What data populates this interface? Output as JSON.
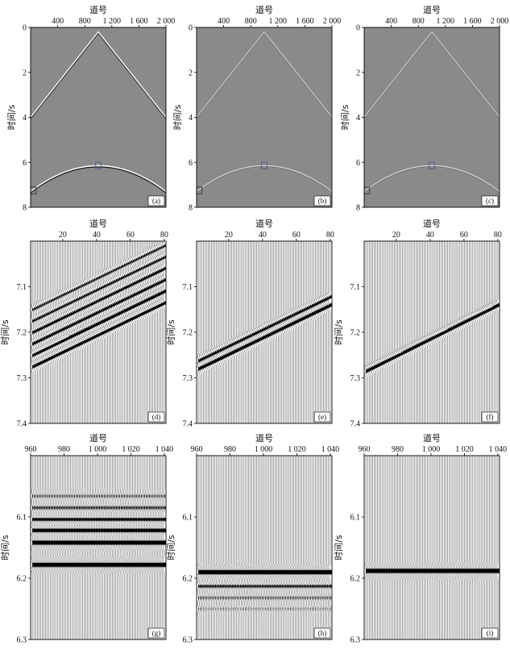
{
  "figure": {
    "xlabel": "道号",
    "ylabel": "时间/s"
  },
  "chart_data": [
    {
      "id": "a",
      "panel_label": "(a)",
      "type": "image",
      "style": "bright",
      "background": "#8a8a8a",
      "xlabel": "道号",
      "ylabel": "时间/s",
      "xlim": [
        0,
        2000
      ],
      "ylim": [
        0,
        8
      ],
      "xticks": [
        400,
        800,
        1200,
        1600,
        2000
      ],
      "xtick_labels": [
        "400",
        "800",
        "1 200",
        "1 600",
        "2 000"
      ],
      "yticks": [
        0,
        2,
        4,
        6,
        8
      ],
      "ytick_labels": [
        "0",
        "2",
        "4",
        "6",
        "8"
      ],
      "events": [
        {
          "kind": "linear",
          "apex_x": 1000,
          "apex_t": 0.2,
          "x": [
            0,
            1000,
            2000
          ],
          "t": [
            4.0,
            0.2,
            4.0
          ]
        },
        {
          "kind": "hyperbolic",
          "apex_x": 1000,
          "apex_t": 6.15,
          "x": [
            0,
            500,
            1000,
            1500,
            2000
          ],
          "t": [
            7.3,
            6.45,
            6.15,
            6.45,
            7.3
          ]
        }
      ],
      "boxes": [
        {
          "color": "#333333",
          "x": [
            0,
            80
          ],
          "t": [
            7.1,
            7.4
          ]
        },
        {
          "color": "#4a5a8a",
          "x": [
            960,
            1040
          ],
          "t": [
            6.0,
            6.3
          ]
        }
      ]
    },
    {
      "id": "b",
      "panel_label": "(b)",
      "type": "image",
      "style": "faint",
      "background": "#8a8a8a",
      "xlabel": "道号",
      "ylabel": "时间/s",
      "xlim": [
        0,
        2000
      ],
      "ylim": [
        0,
        8
      ],
      "xticks": [
        400,
        800,
        1200,
        1600,
        2000
      ],
      "xtick_labels": [
        "400",
        "800",
        "1 200",
        "1 600",
        "2 000"
      ],
      "yticks": [
        0,
        2,
        4,
        6,
        8
      ],
      "ytick_labels": [
        "0",
        "2",
        "4",
        "6",
        "8"
      ],
      "events": [
        {
          "kind": "linear",
          "apex_x": 1000,
          "apex_t": 0.2,
          "x": [
            0,
            1000,
            2000
          ],
          "t": [
            4.0,
            0.2,
            4.0
          ]
        },
        {
          "kind": "hyperbolic",
          "apex_x": 1000,
          "apex_t": 6.15,
          "x": [
            0,
            500,
            1000,
            1500,
            2000
          ],
          "t": [
            7.3,
            6.45,
            6.15,
            6.45,
            7.3
          ]
        }
      ],
      "boxes": [
        {
          "color": "#333333",
          "x": [
            0,
            80
          ],
          "t": [
            7.1,
            7.4
          ]
        },
        {
          "color": "#4a5a8a",
          "x": [
            960,
            1040
          ],
          "t": [
            6.0,
            6.3
          ]
        }
      ]
    },
    {
      "id": "c",
      "panel_label": "(c)",
      "type": "image",
      "style": "faint",
      "background": "#8a8a8a",
      "xlabel": "道号",
      "ylabel": "时间/s",
      "xlim": [
        0,
        2000
      ],
      "ylim": [
        0,
        8
      ],
      "xticks": [
        400,
        800,
        1200,
        1600,
        2000
      ],
      "xtick_labels": [
        "400",
        "800",
        "1 200",
        "1 600",
        "2 000"
      ],
      "yticks": [
        0,
        2,
        4,
        6,
        8
      ],
      "ytick_labels": [
        "0",
        "2",
        "4",
        "6",
        "8"
      ],
      "events": [
        {
          "kind": "linear",
          "apex_x": 1000,
          "apex_t": 0.2,
          "x": [
            0,
            1000,
            2000
          ],
          "t": [
            4.0,
            0.2,
            4.0
          ]
        },
        {
          "kind": "hyperbolic",
          "apex_x": 1000,
          "apex_t": 6.15,
          "x": [
            0,
            500,
            1000,
            1500,
            2000
          ],
          "t": [
            7.3,
            6.45,
            6.15,
            6.45,
            7.3
          ]
        }
      ],
      "boxes": [
        {
          "color": "#333333",
          "x": [
            0,
            80
          ],
          "t": [
            7.1,
            7.4
          ]
        },
        {
          "color": "#4a5a8a",
          "x": [
            960,
            1040
          ],
          "t": [
            6.0,
            6.3
          ]
        }
      ]
    },
    {
      "id": "d",
      "panel_label": "(d)",
      "type": "wiggle",
      "xlabel": "道号",
      "ylabel": "时间/s",
      "xlim": [
        1,
        81
      ],
      "ylim": [
        7.0,
        7.4
      ],
      "xticks": [
        20,
        40,
        60,
        80
      ],
      "xtick_labels": [
        "20",
        "40",
        "60",
        "80"
      ],
      "yticks": [
        7.1,
        7.2,
        7.3,
        7.4
      ],
      "ytick_labels": [
        "7.1",
        "7.2",
        "7.3",
        "7.4"
      ],
      "traces": 80,
      "events": [
        {
          "t_first": 7.275,
          "t_last": 7.135,
          "amp": 1.0
        },
        {
          "t_first": 7.25,
          "t_last": 7.11,
          "amp": 0.85
        },
        {
          "t_first": 7.225,
          "t_last": 7.085,
          "amp": 0.6
        },
        {
          "t_first": 7.2,
          "t_last": 7.06,
          "amp": 0.55
        },
        {
          "t_first": 7.175,
          "t_last": 7.035,
          "amp": 0.45
        },
        {
          "t_first": 7.15,
          "t_last": 7.01,
          "amp": 0.4
        }
      ]
    },
    {
      "id": "e",
      "panel_label": "(e)",
      "type": "wiggle",
      "xlabel": "道号",
      "ylabel": "时间/s",
      "xlim": [
        1,
        81
      ],
      "ylim": [
        7.0,
        7.4
      ],
      "xticks": [
        20,
        40,
        60,
        80
      ],
      "xtick_labels": [
        "20",
        "40",
        "60",
        "80"
      ],
      "yticks": [
        7.1,
        7.2,
        7.3,
        7.4
      ],
      "ytick_labels": [
        "7.1",
        "7.2",
        "7.3",
        "7.4"
      ],
      "traces": 80,
      "events": [
        {
          "t_first": 7.28,
          "t_last": 7.14,
          "amp": 1.0
        },
        {
          "t_first": 7.262,
          "t_last": 7.122,
          "amp": 0.55
        }
      ]
    },
    {
      "id": "f",
      "panel_label": "(f)",
      "type": "wiggle",
      "xlabel": "道号",
      "ylabel": "时间/s",
      "xlim": [
        1,
        81
      ],
      "ylim": [
        7.0,
        7.4
      ],
      "xticks": [
        20,
        40,
        60,
        80
      ],
      "xtick_labels": [
        "20",
        "40",
        "60",
        "80"
      ],
      "yticks": [
        7.1,
        7.2,
        7.3,
        7.4
      ],
      "ytick_labels": [
        "7.1",
        "7.2",
        "7.3",
        "7.4"
      ],
      "traces": 80,
      "events": [
        {
          "t_first": 7.285,
          "t_last": 7.14,
          "amp": 1.0
        }
      ]
    },
    {
      "id": "g",
      "panel_label": "(g)",
      "type": "wiggle",
      "xlabel": "道号",
      "ylabel": "时间/s",
      "xlim": [
        960,
        1041
      ],
      "ylim": [
        6.0,
        6.3
      ],
      "xticks": [
        960,
        980,
        1000,
        1020,
        1040
      ],
      "xtick_labels": [
        "960",
        "980",
        "1 000",
        "1 020",
        "1 040"
      ],
      "yticks": [
        6.1,
        6.2,
        6.3
      ],
      "ytick_labels": [
        "6.1",
        "6.2",
        "6.3"
      ],
      "traces": 80,
      "events": [
        {
          "t_first": 6.178,
          "t_last": 6.178,
          "amp": 1.0
        },
        {
          "t_first": 6.142,
          "t_last": 6.142,
          "amp": 0.85
        },
        {
          "t_first": 6.122,
          "t_last": 6.122,
          "amp": 0.6
        },
        {
          "t_first": 6.104,
          "t_last": 6.104,
          "amp": 0.45
        },
        {
          "t_first": 6.085,
          "t_last": 6.085,
          "amp": 0.3
        },
        {
          "t_first": 6.066,
          "t_last": 6.066,
          "amp": 0.2
        }
      ]
    },
    {
      "id": "h",
      "panel_label": "(h)",
      "type": "wiggle",
      "xlabel": "道号",
      "ylabel": "时间/s",
      "xlim": [
        960,
        1041
      ],
      "ylim": [
        6.0,
        6.3
      ],
      "xticks": [
        960,
        980,
        1000,
        1020,
        1040
      ],
      "xtick_labels": [
        "960",
        "980",
        "1 000",
        "1 020",
        "1 040"
      ],
      "yticks": [
        6.1,
        6.2,
        6.3
      ],
      "ytick_labels": [
        "6.1",
        "6.2",
        "6.3"
      ],
      "traces": 80,
      "events": [
        {
          "t_first": 6.19,
          "t_last": 6.19,
          "amp": 1.0
        },
        {
          "t_first": 6.213,
          "t_last": 6.213,
          "amp": 0.35
        },
        {
          "t_first": 6.232,
          "t_last": 6.232,
          "amp": 0.2
        },
        {
          "t_first": 6.25,
          "t_last": 6.25,
          "amp": 0.12
        }
      ]
    },
    {
      "id": "i",
      "panel_label": "(i)",
      "type": "wiggle",
      "xlabel": "道号",
      "ylabel": "时间/s",
      "xlim": [
        960,
        1041
      ],
      "ylim": [
        6.0,
        6.3
      ],
      "xticks": [
        960,
        980,
        1000,
        1020,
        1040
      ],
      "xtick_labels": [
        "960",
        "980",
        "1 000",
        "1 020",
        "1 040"
      ],
      "yticks": [
        6.1,
        6.2,
        6.3
      ],
      "ytick_labels": [
        "6.1",
        "6.2",
        "6.3"
      ],
      "traces": 80,
      "events": [
        {
          "t_first": 6.188,
          "t_last": 6.188,
          "amp": 1.0
        }
      ]
    }
  ]
}
